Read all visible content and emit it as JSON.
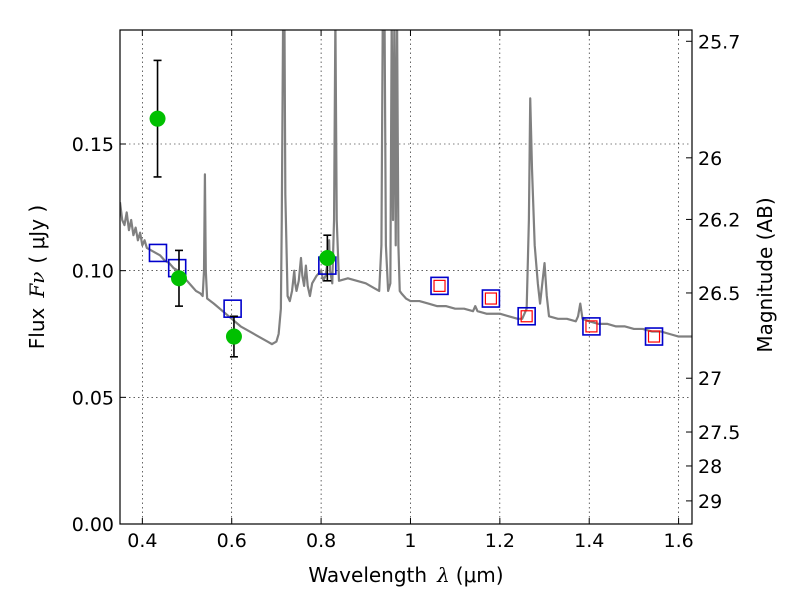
{
  "chart_data": {
    "type": "scatter",
    "xlabel": {
      "prefix": "Wavelength",
      "symbol": "λ",
      "unit": "(μm)"
    },
    "ylabel": {
      "prefix": "Flux",
      "symbol": "Fν",
      "unit": "( μJy )"
    },
    "ylabel_right": "Magnitude (AB)",
    "xlim": [
      0.35,
      1.63
    ],
    "ylim": [
      0.0,
      0.195
    ],
    "grid": true,
    "x_ticks": [
      {
        "value": 0.4,
        "label": "0.4"
      },
      {
        "value": 0.6,
        "label": "0.6"
      },
      {
        "value": 0.8,
        "label": "0.8"
      },
      {
        "value": 1.0,
        "label": "1"
      },
      {
        "value": 1.2,
        "label": "1.2"
      },
      {
        "value": 1.4,
        "label": "1.4"
      },
      {
        "value": 1.6,
        "label": "1.6"
      }
    ],
    "y_ticks": [
      {
        "value": 0.0,
        "label": "0.00"
      },
      {
        "value": 0.05,
        "label": "0.05"
      },
      {
        "value": 0.1,
        "label": "0.10"
      },
      {
        "value": 0.15,
        "label": "0.15"
      }
    ],
    "right_ticks": [
      {
        "mag": 25.7,
        "label": "25.7"
      },
      {
        "mag": 26.0,
        "label": "26"
      },
      {
        "mag": 26.2,
        "label": "26.2"
      },
      {
        "mag": 26.5,
        "label": "26.5"
      },
      {
        "mag": 27.0,
        "label": "27"
      },
      {
        "mag": 27.5,
        "label": "27.5"
      },
      {
        "mag": 28.0,
        "label": "28"
      },
      {
        "mag": 29.0,
        "label": "29"
      }
    ],
    "series": [
      {
        "kind": "spectrum",
        "color": "#808080",
        "points": [
          [
            0.35,
            0.127
          ],
          [
            0.355,
            0.12
          ],
          [
            0.36,
            0.118
          ],
          [
            0.365,
            0.123
          ],
          [
            0.37,
            0.116
          ],
          [
            0.375,
            0.12
          ],
          [
            0.38,
            0.114
          ],
          [
            0.385,
            0.117
          ],
          [
            0.39,
            0.112
          ],
          [
            0.395,
            0.115
          ],
          [
            0.4,
            0.11
          ],
          [
            0.405,
            0.112
          ],
          [
            0.41,
            0.109
          ],
          [
            0.42,
            0.108
          ],
          [
            0.43,
            0.107
          ],
          [
            0.44,
            0.106
          ],
          [
            0.45,
            0.104
          ],
          [
            0.46,
            0.103
          ],
          [
            0.47,
            0.101
          ],
          [
            0.48,
            0.1
          ],
          [
            0.49,
            0.098
          ],
          [
            0.5,
            0.096
          ],
          [
            0.51,
            0.094
          ],
          [
            0.52,
            0.092
          ],
          [
            0.53,
            0.091
          ],
          [
            0.535,
            0.09
          ],
          [
            0.538,
            0.1
          ],
          [
            0.54,
            0.138
          ],
          [
            0.542,
            0.1
          ],
          [
            0.545,
            0.089
          ],
          [
            0.56,
            0.087
          ],
          [
            0.58,
            0.084
          ],
          [
            0.6,
            0.081
          ],
          [
            0.62,
            0.078
          ],
          [
            0.64,
            0.076
          ],
          [
            0.66,
            0.074
          ],
          [
            0.68,
            0.072
          ],
          [
            0.69,
            0.071
          ],
          [
            0.7,
            0.072
          ],
          [
            0.705,
            0.075
          ],
          [
            0.71,
            0.085
          ],
          [
            0.712,
            0.12
          ],
          [
            0.715,
            0.2
          ],
          [
            0.718,
            0.2
          ],
          [
            0.72,
            0.13
          ],
          [
            0.725,
            0.09
          ],
          [
            0.73,
            0.088
          ],
          [
            0.735,
            0.092
          ],
          [
            0.74,
            0.1
          ],
          [
            0.742,
            0.095
          ],
          [
            0.745,
            0.092
          ],
          [
            0.75,
            0.096
          ],
          [
            0.755,
            0.105
          ],
          [
            0.758,
            0.098
          ],
          [
            0.762,
            0.094
          ],
          [
            0.766,
            0.102
          ],
          [
            0.77,
            0.094
          ],
          [
            0.775,
            0.09
          ],
          [
            0.78,
            0.095
          ],
          [
            0.79,
            0.098
          ],
          [
            0.8,
            0.1
          ],
          [
            0.805,
            0.096
          ],
          [
            0.81,
            0.098
          ],
          [
            0.815,
            0.104
          ],
          [
            0.818,
            0.112
          ],
          [
            0.82,
            0.1
          ],
          [
            0.825,
            0.095
          ],
          [
            0.829,
            0.12
          ],
          [
            0.832,
            0.2
          ],
          [
            0.835,
            0.12
          ],
          [
            0.84,
            0.096
          ],
          [
            0.86,
            0.097
          ],
          [
            0.88,
            0.096
          ],
          [
            0.9,
            0.095
          ],
          [
            0.92,
            0.093
          ],
          [
            0.93,
            0.092
          ],
          [
            0.935,
            0.11
          ],
          [
            0.938,
            0.2
          ],
          [
            0.942,
            0.2
          ],
          [
            0.945,
            0.11
          ],
          [
            0.95,
            0.092
          ],
          [
            0.955,
            0.095
          ],
          [
            0.958,
            0.2
          ],
          [
            0.961,
            0.12
          ],
          [
            0.964,
            0.2
          ],
          [
            0.967,
            0.11
          ],
          [
            0.97,
            0.2
          ],
          [
            0.973,
            0.11
          ],
          [
            0.976,
            0.092
          ],
          [
            0.98,
            0.091
          ],
          [
            0.99,
            0.089
          ],
          [
            1.0,
            0.088
          ],
          [
            1.02,
            0.088
          ],
          [
            1.04,
            0.087
          ],
          [
            1.06,
            0.086
          ],
          [
            1.08,
            0.086
          ],
          [
            1.1,
            0.085
          ],
          [
            1.12,
            0.085
          ],
          [
            1.14,
            0.084
          ],
          [
            1.145,
            0.086
          ],
          [
            1.15,
            0.084
          ],
          [
            1.17,
            0.083
          ],
          [
            1.2,
            0.083
          ],
          [
            1.22,
            0.082
          ],
          [
            1.24,
            0.081
          ],
          [
            1.25,
            0.081
          ],
          [
            1.26,
            0.085
          ],
          [
            1.265,
            0.12
          ],
          [
            1.268,
            0.168
          ],
          [
            1.272,
            0.14
          ],
          [
            1.278,
            0.11
          ],
          [
            1.285,
            0.095
          ],
          [
            1.29,
            0.087
          ],
          [
            1.295,
            0.095
          ],
          [
            1.3,
            0.103
          ],
          [
            1.305,
            0.09
          ],
          [
            1.31,
            0.082
          ],
          [
            1.33,
            0.081
          ],
          [
            1.35,
            0.081
          ],
          [
            1.37,
            0.08
          ],
          [
            1.375,
            0.082
          ],
          [
            1.38,
            0.087
          ],
          [
            1.385,
            0.081
          ],
          [
            1.4,
            0.08
          ],
          [
            1.42,
            0.079
          ],
          [
            1.44,
            0.079
          ],
          [
            1.46,
            0.078
          ],
          [
            1.48,
            0.078
          ],
          [
            1.5,
            0.077
          ],
          [
            1.52,
            0.077
          ],
          [
            1.54,
            0.076
          ],
          [
            1.56,
            0.076
          ],
          [
            1.58,
            0.075
          ],
          [
            1.6,
            0.074
          ],
          [
            1.62,
            0.074
          ],
          [
            1.63,
            0.074
          ]
        ]
      },
      {
        "kind": "measured",
        "color": "#00c000",
        "errorbar_color": "#000000",
        "points": [
          {
            "x": 0.434,
            "y": 0.16,
            "err": 0.023
          },
          {
            "x": 0.482,
            "y": 0.097,
            "err": 0.011
          },
          {
            "x": 0.605,
            "y": 0.074,
            "err": 0.008
          },
          {
            "x": 0.814,
            "y": 0.105,
            "err": 0.009
          }
        ]
      },
      {
        "kind": "model_photometry",
        "color": "#0000cc",
        "points": [
          {
            "x": 0.435,
            "y": 0.107
          },
          {
            "x": 0.478,
            "y": 0.101
          },
          {
            "x": 0.602,
            "y": 0.085
          },
          {
            "x": 0.814,
            "y": 0.102
          },
          {
            "x": 1.065,
            "y": 0.094
          },
          {
            "x": 1.18,
            "y": 0.089
          },
          {
            "x": 1.26,
            "y": 0.082
          },
          {
            "x": 1.405,
            "y": 0.078
          },
          {
            "x": 1.545,
            "y": 0.074
          }
        ]
      },
      {
        "kind": "model_photometry_inner",
        "color": "#ff0000",
        "points": [
          {
            "x": 1.065,
            "y": 0.094
          },
          {
            "x": 1.18,
            "y": 0.089
          },
          {
            "x": 1.26,
            "y": 0.082
          },
          {
            "x": 1.405,
            "y": 0.078
          },
          {
            "x": 1.545,
            "y": 0.074
          }
        ]
      }
    ]
  }
}
